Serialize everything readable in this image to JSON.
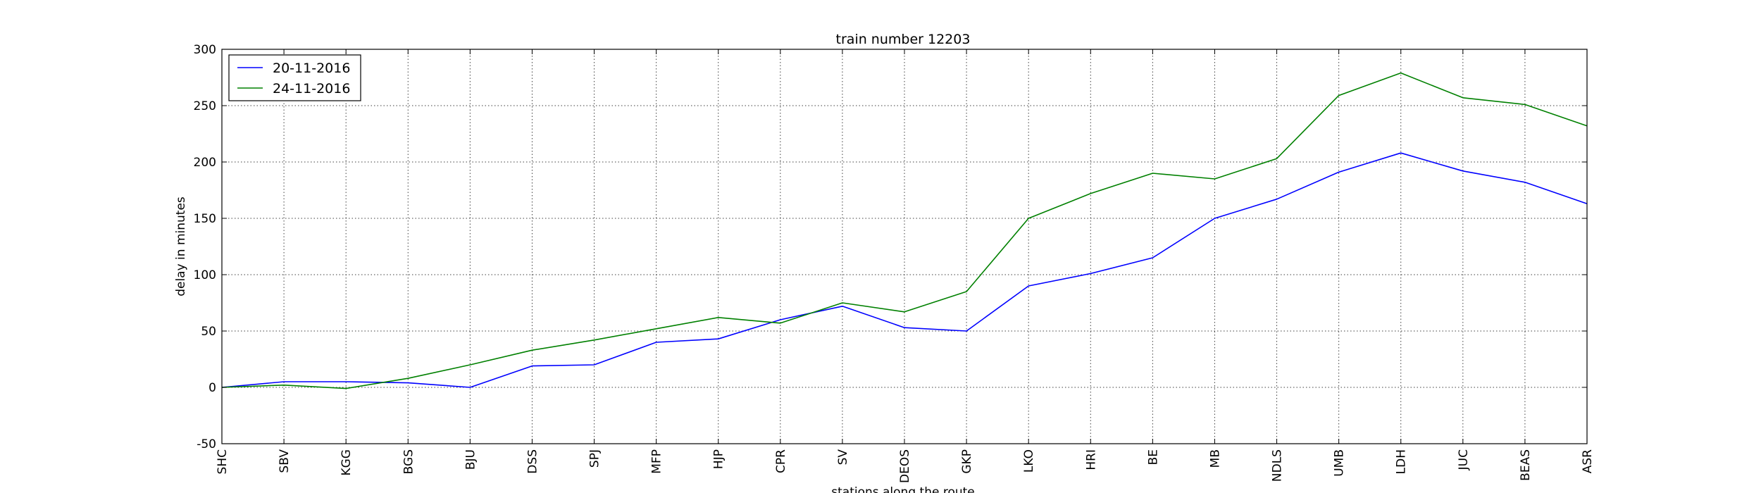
{
  "chart_data": {
    "type": "line",
    "title": "train number 12203",
    "xlabel": "stations along the route",
    "ylabel": "delay in minutes",
    "ylim": [
      -50,
      300
    ],
    "yticks": [
      -50,
      0,
      50,
      100,
      150,
      200,
      250,
      300
    ],
    "grid": true,
    "legend_position": "top-left",
    "categories": [
      "SHC",
      "SBV",
      "KGG",
      "BGS",
      "BJU",
      "DSS",
      "SPJ",
      "MFP",
      "HJP",
      "CPR",
      "SV",
      "DEOS",
      "GKP",
      "LKO",
      "HRI",
      "BE",
      "MB",
      "NDLS",
      "UMB",
      "LDH",
      "JUC",
      "BEAS",
      "ASR"
    ],
    "series": [
      {
        "name": "20-11-2016",
        "color": "#0000ff",
        "values": [
          0,
          5,
          5,
          4,
          0,
          19,
          20,
          40,
          43,
          60,
          72,
          53,
          50,
          90,
          101,
          115,
          150,
          167,
          191,
          208,
          192,
          182,
          163
        ]
      },
      {
        "name": "24-11-2016",
        "color": "#008000",
        "values": [
          0,
          2,
          -1,
          8,
          20,
          33,
          42,
          52,
          62,
          57,
          75,
          67,
          85,
          150,
          172,
          190,
          185,
          203,
          259,
          279,
          257,
          251,
          232
        ]
      }
    ]
  }
}
